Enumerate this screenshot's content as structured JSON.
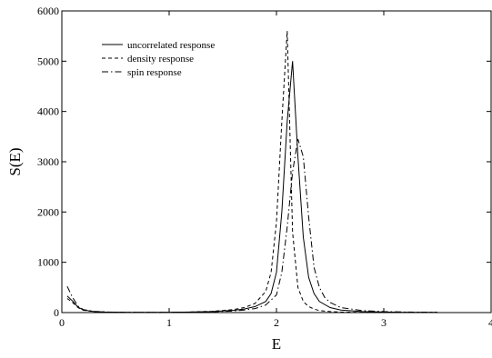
{
  "chart_data": {
    "type": "line",
    "title": "",
    "xlabel": "E",
    "ylabel": "S(E)",
    "xlim": [
      0,
      4
    ],
    "ylim": [
      0,
      6000
    ],
    "xticks": [
      "0",
      "1",
      "2",
      "3",
      "4"
    ],
    "yticks": [
      "0",
      "1000",
      "2000",
      "3000",
      "4000",
      "5000",
      "6000"
    ],
    "grid": false,
    "legend_position": "top-left",
    "series": [
      {
        "name": "uncorrelated response",
        "dash": "solid",
        "x": [
          0.05,
          0.1,
          0.15,
          0.2,
          0.3,
          0.4,
          0.6,
          0.8,
          1.0,
          1.2,
          1.4,
          1.6,
          1.7,
          1.8,
          1.9,
          1.95,
          2.0,
          2.05,
          2.1,
          2.15,
          2.2,
          2.25,
          2.3,
          2.35,
          2.4,
          2.5,
          2.6,
          2.8,
          3.0,
          3.2,
          3.5
        ],
        "y": [
          330,
          230,
          110,
          50,
          20,
          10,
          5,
          5,
          5,
          10,
          20,
          45,
          70,
          120,
          220,
          380,
          800,
          2000,
          3800,
          5000,
          3100,
          1500,
          700,
          380,
          220,
          100,
          50,
          20,
          10,
          5,
          5
        ]
      },
      {
        "name": "density response",
        "dash": "dashed",
        "x": [
          0.05,
          0.1,
          0.15,
          0.2,
          0.3,
          0.4,
          0.6,
          0.8,
          1.0,
          1.2,
          1.4,
          1.6,
          1.7,
          1.8,
          1.9,
          1.95,
          2.0,
          2.05,
          2.1,
          2.15,
          2.2,
          2.25,
          2.3,
          2.35,
          2.4,
          2.5,
          2.6,
          2.8,
          3.0,
          3.2,
          3.5
        ],
        "y": [
          280,
          200,
          100,
          45,
          20,
          10,
          5,
          5,
          5,
          10,
          25,
          60,
          100,
          180,
          420,
          800,
          1800,
          3800,
          5600,
          1600,
          500,
          220,
          120,
          70,
          40,
          20,
          10,
          5,
          5,
          5,
          5
        ]
      },
      {
        "name": "spin response",
        "dash": "dashdot",
        "x": [
          0.05,
          0.1,
          0.15,
          0.2,
          0.3,
          0.4,
          0.6,
          0.8,
          1.0,
          1.2,
          1.4,
          1.6,
          1.7,
          1.8,
          1.9,
          2.0,
          2.05,
          2.1,
          2.15,
          2.2,
          2.25,
          2.3,
          2.35,
          2.4,
          2.45,
          2.5,
          2.6,
          2.8,
          3.0,
          3.2,
          3.5
        ],
        "y": [
          520,
          300,
          130,
          60,
          25,
          12,
          5,
          5,
          5,
          8,
          15,
          30,
          50,
          80,
          150,
          350,
          800,
          1700,
          2800,
          3450,
          3100,
          1900,
          900,
          500,
          300,
          200,
          100,
          40,
          20,
          10,
          5
        ]
      }
    ]
  }
}
